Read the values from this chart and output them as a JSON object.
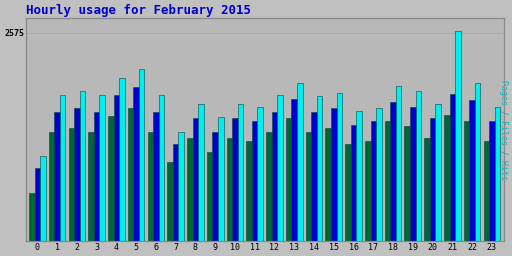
{
  "title": "Hourly usage for February 2015",
  "title_color": "#0000cc",
  "title_fontsize": 9,
  "hours": [
    0,
    1,
    2,
    3,
    4,
    5,
    6,
    7,
    8,
    9,
    10,
    11,
    12,
    13,
    14,
    15,
    16,
    17,
    18,
    19,
    20,
    21,
    22,
    23
  ],
  "pages": [
    600,
    1350,
    1400,
    1350,
    1550,
    1650,
    1350,
    980,
    1280,
    1100,
    1280,
    1240,
    1350,
    1520,
    1350,
    1400,
    1200,
    1240,
    1480,
    1420,
    1280,
    1560,
    1490,
    1240
  ],
  "files": [
    900,
    1600,
    1650,
    1600,
    1800,
    1900,
    1600,
    1200,
    1520,
    1350,
    1520,
    1490,
    1600,
    1750,
    1600,
    1650,
    1440,
    1490,
    1720,
    1660,
    1520,
    1820,
    1740,
    1490
  ],
  "hits": [
    1050,
    1800,
    1850,
    1800,
    2020,
    2120,
    1800,
    1350,
    1700,
    1530,
    1700,
    1660,
    1800,
    1950,
    1790,
    1830,
    1610,
    1650,
    1920,
    1860,
    1700,
    2600,
    1950,
    1660
  ],
  "pages_color": "#006633",
  "files_color": "#0000cc",
  "hits_color": "#00eeee",
  "edge_color": "#004444",
  "bg_color": "#c0c0c0",
  "plot_bg_color": "#b8b8b8",
  "ylabel": "Pages / Files / Hits",
  "ylabel_color": "#00bbbb",
  "ytick_label": "2575",
  "ytick_val": 2575,
  "ymax": 2750,
  "bar_width": 0.28,
  "xlim_left": -0.6,
  "xlim_right": 23.6
}
